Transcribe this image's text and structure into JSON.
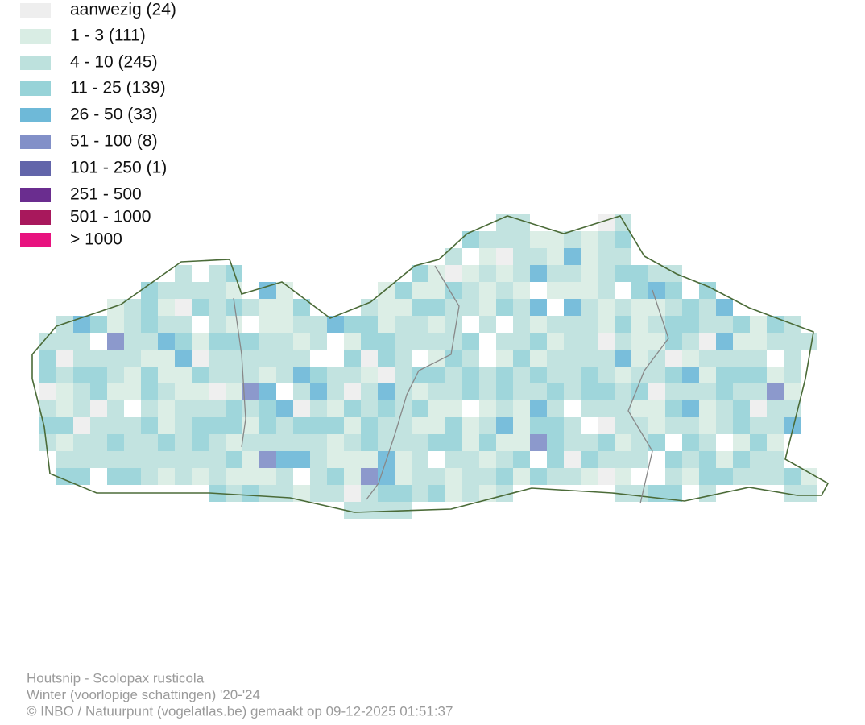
{
  "legend": {
    "items": [
      {
        "label": "aanwezig (24)",
        "color": "#eeeeee"
      },
      {
        "label": "1 - 3 (111)",
        "color": "#d9ede4"
      },
      {
        "label": "4 - 10 (245)",
        "color": "#bde1dd"
      },
      {
        "label": "11 - 25 (139)",
        "color": "#97d3d8"
      },
      {
        "label": "26 - 50 (33)",
        "color": "#6eb9d8"
      },
      {
        "label": "51 - 100 (8)",
        "color": "#8290c8"
      },
      {
        "label": "101 - 250 (1)",
        "color": "#6265aa"
      },
      {
        "label": "251 - 500",
        "color": "#6a2d8f"
      },
      {
        "label": "501 - 1000",
        "color": "#a8185c"
      },
      {
        "label": "> 1000",
        "color": "#e8137f"
      }
    ]
  },
  "footer": {
    "lines": [
      "Houtsnip - Scolopax rusticola",
      "Winter (voorlopige schattingen) '20-'24",
      "© INBO / Natuurpunt (vogelatlas.be) gemaakt op 09-12-2025 01:51:37"
    ]
  }
}
